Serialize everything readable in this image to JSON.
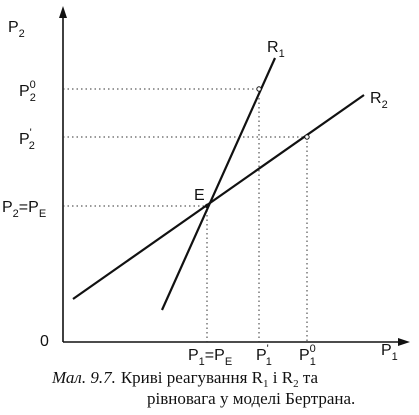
{
  "axes": {
    "y_label": {
      "main": "P",
      "sub": "2"
    },
    "x_label": {
      "main": "P",
      "sub": "1"
    },
    "origin": "0"
  },
  "y_ticks": [
    {
      "main": "P",
      "sub": "2",
      "sup": "0"
    },
    {
      "main": "P",
      "sub": "2",
      "sup": "'"
    },
    {
      "main": "P",
      "sub": "2",
      "eq": "=P",
      "eq_sub": "E"
    }
  ],
  "x_ticks": [
    {
      "main": "P",
      "sub": "1",
      "eq": "=P",
      "eq_sub": "E"
    },
    {
      "main": "P",
      "sub": "1",
      "sup": "'"
    },
    {
      "main": "P",
      "sub": "1",
      "sup": "0"
    }
  ],
  "curves": {
    "r1": {
      "main": "R",
      "sub": "1"
    },
    "r2": {
      "main": "R",
      "sub": "2"
    }
  },
  "equilibrium_label": "E",
  "caption": {
    "number": "Мал. 9.7.",
    "text_part1": "Криві реагування R",
    "sub1": "1",
    "text_part2": " і R",
    "sub2": "2",
    "text_part3": " та",
    "line2": "рівновага у моделі Бертрана."
  }
}
